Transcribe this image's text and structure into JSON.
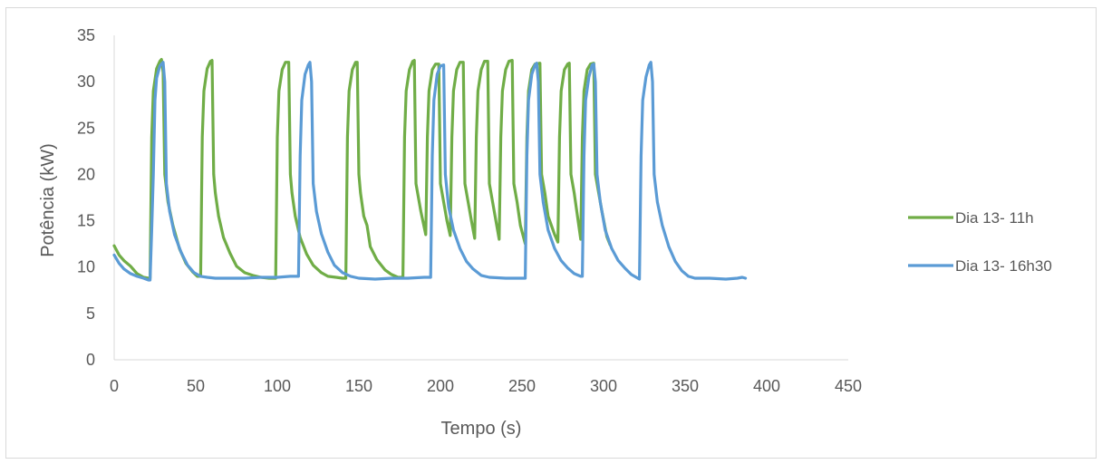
{
  "chart_data": {
    "type": "line",
    "title": "",
    "xlabel": "Tempo (s)",
    "ylabel": "Potência (kW)",
    "xlim": [
      0,
      450
    ],
    "ylim": [
      0,
      35
    ],
    "xticks": [
      0,
      50,
      100,
      150,
      200,
      250,
      300,
      350,
      400,
      450
    ],
    "yticks": [
      0,
      5,
      10,
      15,
      20,
      25,
      30,
      35
    ],
    "grid": false,
    "legend_position": "right",
    "series": [
      {
        "name": "Dia 13- 11h",
        "color": "#70ad47",
        "points": [
          [
            0,
            12.3
          ],
          [
            3,
            11.3
          ],
          [
            6,
            10.7
          ],
          [
            10,
            10.1
          ],
          [
            14,
            9.3
          ],
          [
            18,
            8.9
          ],
          [
            21,
            8.8
          ],
          [
            22,
            8.8
          ],
          [
            23,
            24
          ],
          [
            24,
            29
          ],
          [
            26,
            31.4
          ],
          [
            28,
            32.2
          ],
          [
            29,
            32.4
          ],
          [
            30,
            31
          ],
          [
            31,
            20
          ],
          [
            33,
            17
          ],
          [
            36,
            14.5
          ],
          [
            40,
            12
          ],
          [
            44,
            10.4
          ],
          [
            48,
            9.5
          ],
          [
            51,
            9.0
          ],
          [
            53,
            9.0
          ],
          [
            54,
            24
          ],
          [
            55,
            29
          ],
          [
            57,
            31.4
          ],
          [
            59,
            32.2
          ],
          [
            60,
            32.3
          ],
          [
            61,
            20
          ],
          [
            62,
            18
          ],
          [
            64,
            15.5
          ],
          [
            67,
            13.2
          ],
          [
            71,
            11.5
          ],
          [
            75,
            10.1
          ],
          [
            80,
            9.4
          ],
          [
            85,
            9.1
          ],
          [
            90,
            8.9
          ],
          [
            95,
            8.8
          ],
          [
            99,
            8.8
          ],
          [
            100,
            24
          ],
          [
            101,
            29
          ],
          [
            103,
            31.3
          ],
          [
            105,
            32.1
          ],
          [
            107,
            32.1
          ],
          [
            108,
            20
          ],
          [
            109,
            18
          ],
          [
            111,
            15.5
          ],
          [
            114,
            13.2
          ],
          [
            118,
            11.4
          ],
          [
            122,
            10.2
          ],
          [
            127,
            9.4
          ],
          [
            131,
            9.0
          ],
          [
            136,
            8.9
          ],
          [
            140,
            8.8
          ],
          [
            142,
            8.8
          ],
          [
            143,
            24
          ],
          [
            144,
            29
          ],
          [
            146,
            31.3
          ],
          [
            148,
            32.1
          ],
          [
            149,
            32.1
          ],
          [
            150,
            20
          ],
          [
            151,
            18
          ],
          [
            153,
            15.5
          ],
          [
            155,
            14.5
          ],
          [
            157,
            12.2
          ],
          [
            161,
            10.8
          ],
          [
            166,
            9.7
          ],
          [
            170,
            9.2
          ],
          [
            174,
            8.9
          ],
          [
            177,
            8.9
          ],
          [
            178,
            24
          ],
          [
            179,
            29
          ],
          [
            181,
            31.3
          ],
          [
            183,
            32.2
          ],
          [
            184,
            32.3
          ],
          [
            185,
            19
          ],
          [
            186,
            18
          ],
          [
            188,
            16
          ],
          [
            191,
            13.5
          ],
          [
            192,
            24
          ],
          [
            193,
            29
          ],
          [
            195,
            31.3
          ],
          [
            197,
            31.9
          ],
          [
            199,
            31.9
          ],
          [
            200,
            19
          ],
          [
            202,
            17
          ],
          [
            204,
            15
          ],
          [
            206,
            13.4
          ],
          [
            207,
            24
          ],
          [
            208,
            29
          ],
          [
            210,
            31.3
          ],
          [
            212,
            32.1
          ],
          [
            214,
            32.1
          ],
          [
            215,
            19
          ],
          [
            217,
            17
          ],
          [
            219,
            15
          ],
          [
            221,
            13.1
          ],
          [
            222,
            24
          ],
          [
            223,
            29
          ],
          [
            225,
            31.3
          ],
          [
            227,
            32.2
          ],
          [
            229,
            32.2
          ],
          [
            230,
            19
          ],
          [
            232,
            17
          ],
          [
            234,
            15
          ],
          [
            236,
            13.0
          ],
          [
            237,
            24
          ],
          [
            238,
            29
          ],
          [
            240,
            31.3
          ],
          [
            242,
            32.2
          ],
          [
            244,
            32.3
          ],
          [
            245,
            19
          ],
          [
            247,
            17
          ],
          [
            249,
            14.5
          ],
          [
            252,
            12.5
          ],
          [
            253,
            24
          ],
          [
            254,
            29
          ],
          [
            256,
            31.3
          ],
          [
            258,
            31.9
          ],
          [
            261,
            32.0
          ],
          [
            262,
            20
          ],
          [
            264,
            18
          ],
          [
            266,
            15.5
          ],
          [
            268,
            14.5
          ],
          [
            270,
            13.5
          ],
          [
            272,
            12.7
          ],
          [
            273,
            24
          ],
          [
            274,
            29
          ],
          [
            276,
            31.3
          ],
          [
            278,
            31.9
          ],
          [
            279,
            32.0
          ],
          [
            280,
            20
          ],
          [
            282,
            18
          ],
          [
            284,
            15.5
          ],
          [
            286,
            13.0
          ],
          [
            287,
            24
          ],
          [
            288,
            29
          ],
          [
            290,
            31.3
          ],
          [
            292,
            31.9
          ],
          [
            294,
            32.0
          ],
          [
            295,
            20
          ],
          [
            297,
            18
          ],
          [
            299,
            16
          ],
          [
            302,
            13.3
          ],
          [
            304,
            12.4
          ]
        ]
      },
      {
        "name": "Dia 13- 16h30",
        "color": "#5b9bd5",
        "points": [
          [
            0,
            11.3
          ],
          [
            3,
            10.4
          ],
          [
            6,
            9.8
          ],
          [
            10,
            9.3
          ],
          [
            14,
            9.0
          ],
          [
            18,
            8.8
          ],
          [
            21,
            8.6
          ],
          [
            22,
            8.6
          ],
          [
            23,
            14
          ],
          [
            24,
            20
          ],
          [
            25,
            28
          ],
          [
            26,
            30.4
          ],
          [
            28,
            31.7
          ],
          [
            30,
            32.1
          ],
          [
            31,
            30
          ],
          [
            32,
            19
          ],
          [
            34,
            16
          ],
          [
            37,
            13.5
          ],
          [
            41,
            11.6
          ],
          [
            45,
            10.2
          ],
          [
            49,
            9.4
          ],
          [
            53,
            9.0
          ],
          [
            57,
            8.9
          ],
          [
            62,
            8.8
          ],
          [
            70,
            8.8
          ],
          [
            80,
            8.8
          ],
          [
            90,
            8.9
          ],
          [
            100,
            8.9
          ],
          [
            108,
            9.0
          ],
          [
            113,
            9.0
          ],
          [
            114,
            22
          ],
          [
            115,
            28
          ],
          [
            117,
            30.8
          ],
          [
            119,
            31.8
          ],
          [
            120,
            32.1
          ],
          [
            121,
            30
          ],
          [
            122,
            19
          ],
          [
            124,
            16
          ],
          [
            127,
            13.6
          ],
          [
            131,
            11.6
          ],
          [
            135,
            10.2
          ],
          [
            140,
            9.4
          ],
          [
            145,
            9.0
          ],
          [
            150,
            8.8
          ],
          [
            160,
            8.7
          ],
          [
            170,
            8.8
          ],
          [
            180,
            8.8
          ],
          [
            190,
            8.9
          ],
          [
            194,
            8.9
          ],
          [
            195,
            22
          ],
          [
            196,
            28
          ],
          [
            198,
            30.8
          ],
          [
            200,
            31.7
          ],
          [
            202,
            31.8
          ],
          [
            203,
            20
          ],
          [
            205,
            16.5
          ],
          [
            208,
            14
          ],
          [
            212,
            12
          ],
          [
            216,
            10.6
          ],
          [
            220,
            9.8
          ],
          [
            225,
            9.1
          ],
          [
            230,
            8.9
          ],
          [
            240,
            8.8
          ],
          [
            248,
            8.8
          ],
          [
            252,
            8.8
          ],
          [
            253,
            22
          ],
          [
            254,
            28
          ],
          [
            256,
            30.8
          ],
          [
            258,
            31.8
          ],
          [
            259,
            32.0
          ],
          [
            260,
            30
          ],
          [
            261,
            20
          ],
          [
            263,
            17
          ],
          [
            266,
            14
          ],
          [
            270,
            12
          ],
          [
            274,
            10.7
          ],
          [
            278,
            9.9
          ],
          [
            282,
            9.3
          ],
          [
            286,
            9.0
          ],
          [
            287,
            9.0
          ],
          [
            288,
            22
          ],
          [
            289,
            28
          ],
          [
            291,
            30.5
          ],
          [
            293,
            31.8
          ],
          [
            294,
            31.9
          ],
          [
            295,
            30
          ],
          [
            296,
            20
          ],
          [
            298,
            17
          ],
          [
            301,
            14
          ],
          [
            305,
            12
          ],
          [
            309,
            10.7
          ],
          [
            313,
            9.9
          ],
          [
            317,
            9.2
          ],
          [
            321,
            8.8
          ],
          [
            322,
            8.7
          ],
          [
            323,
            22
          ],
          [
            324,
            28
          ],
          [
            326,
            30.5
          ],
          [
            328,
            31.8
          ],
          [
            329,
            32.1
          ],
          [
            330,
            30
          ],
          [
            331,
            20
          ],
          [
            333,
            17
          ],
          [
            336,
            14.5
          ],
          [
            340,
            12.2
          ],
          [
            344,
            10.6
          ],
          [
            348,
            9.6
          ],
          [
            352,
            9.0
          ],
          [
            356,
            8.8
          ],
          [
            365,
            8.8
          ],
          [
            375,
            8.7
          ],
          [
            382,
            8.8
          ],
          [
            385,
            8.9
          ],
          [
            387,
            8.8
          ]
        ]
      }
    ]
  }
}
